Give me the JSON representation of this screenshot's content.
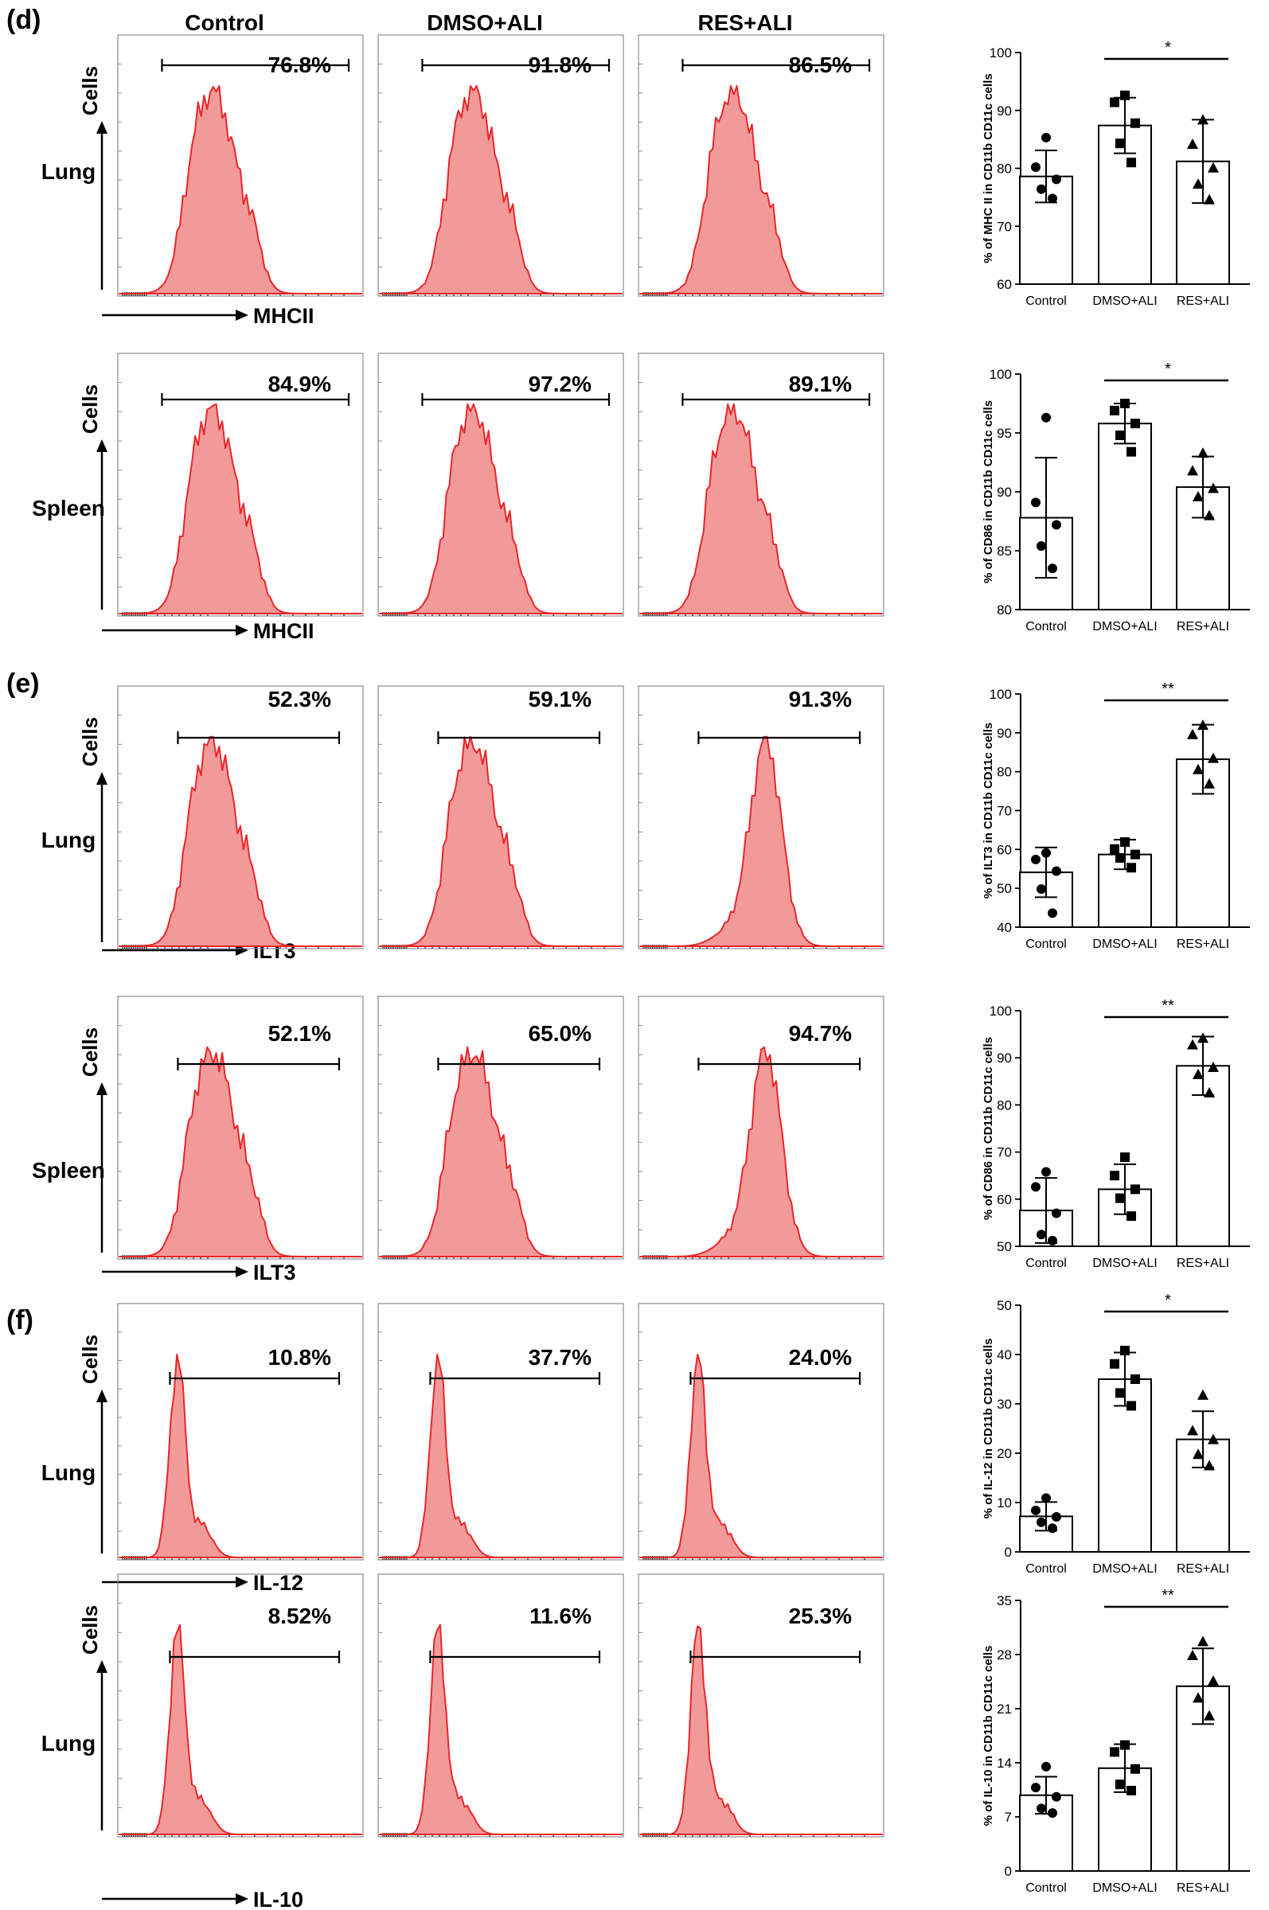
{
  "figure": {
    "panel_labels": [
      "(d)",
      "(e)",
      "(f)"
    ],
    "column_headers": [
      "Control",
      "DMSO+ALI",
      "RES+ALI"
    ],
    "y_axis_label": "Cells"
  },
  "flow_rows": [
    {
      "tissue": "Lung",
      "marker": "MHCII",
      "percentages": [
        "76.8%",
        "91.8%",
        "86.5%"
      ],
      "shapes": [
        "broad",
        "broad",
        "broad"
      ]
    },
    {
      "tissue": "Spleen",
      "marker": "MHCII",
      "percentages": [
        "84.9%",
        "97.2%",
        "89.1%"
      ],
      "shapes": [
        "broad",
        "broad",
        "broad"
      ]
    },
    {
      "tissue": "Lung",
      "marker": "ILT3",
      "percentages": [
        "52.3%",
        "59.1%",
        "91.3%"
      ],
      "shapes": [
        "broad",
        "broad",
        "tall"
      ]
    },
    {
      "tissue": "Spleen",
      "marker": "ILT3",
      "percentages": [
        "52.1%",
        "65.0%",
        "94.7%"
      ],
      "shapes": [
        "broad",
        "broad",
        "tall"
      ]
    },
    {
      "tissue": "Lung",
      "marker": "IL-12",
      "percentages": [
        "10.8%",
        "37.7%",
        "24.0%"
      ],
      "shapes": [
        "narrow",
        "narrow",
        "narrow"
      ]
    },
    {
      "tissue": "Lung",
      "marker": "IL-10",
      "percentages": [
        "8.52%",
        "11.6%",
        "25.3%"
      ],
      "shapes": [
        "narrow",
        "narrow",
        "narrow"
      ]
    }
  ],
  "colors": {
    "hist_fill": "#f29a9a",
    "hist_stroke": "#e8262a",
    "axis": "#000000"
  },
  "chart_data": [
    {
      "type": "bar",
      "categories": [
        "Control",
        "DMSO+ALI",
        "RES+ALI"
      ],
      "ylabel": "% of MHC II in CD11b CD11c cells",
      "ylim": [
        60,
        100
      ],
      "ticks": [
        60,
        70,
        80,
        90,
        100
      ],
      "values": [
        78.6,
        87.4,
        81.2
      ],
      "sd": [
        4.5,
        4.8,
        7.2
      ],
      "points": [
        [
          85.3,
          80.2,
          78.1,
          76.4,
          74.8
        ],
        [
          92.6,
          91.4,
          87.8,
          84.3,
          81.0
        ],
        [
          88.4,
          84.2,
          80.1,
          77.3,
          74.6
        ]
      ],
      "significance": "*",
      "sig_between": [
        1,
        2
      ]
    },
    {
      "type": "bar",
      "categories": [
        "Control",
        "DMSO+ALI",
        "RES+ALI"
      ],
      "ylabel": "% of CD86 in CD11b CD11c cells",
      "ylim": [
        80,
        100
      ],
      "ticks": [
        80,
        85,
        90,
        95,
        100
      ],
      "values": [
        87.8,
        95.8,
        90.4
      ],
      "sd": [
        5.1,
        1.7,
        2.6
      ],
      "points": [
        [
          96.3,
          89.1,
          87.2,
          85.4,
          83.5
        ],
        [
          97.5,
          96.9,
          95.8,
          94.8,
          93.4
        ],
        [
          93.3,
          91.8,
          90.3,
          89.6,
          88.0
        ]
      ],
      "significance": "*",
      "sig_between": [
        1,
        2
      ]
    },
    {
      "type": "bar",
      "categories": [
        "Control",
        "DMSO+ALI",
        "RES+ALI"
      ],
      "ylabel": "% of ILT3 in CD11b CD11c cells",
      "ylim": [
        40,
        100
      ],
      "ticks": [
        40,
        50,
        60,
        70,
        80,
        90,
        100
      ],
      "values": [
        54.1,
        58.7,
        83.2
      ],
      "sd": [
        6.4,
        3.8,
        8.9
      ],
      "points": [
        [
          59.1,
          57.4,
          54.4,
          49.8,
          43.6
        ],
        [
          61.9,
          60.1,
          58.7,
          57.8,
          55.3
        ],
        [
          92.0,
          89.6,
          83.5,
          80.6,
          76.9
        ]
      ],
      "significance": "**",
      "sig_between": [
        1,
        2
      ]
    },
    {
      "type": "bar",
      "categories": [
        "Control",
        "DMSO+ALI",
        "RES+ALI"
      ],
      "ylabel": "% of CD86 in CD11b CD11c cells",
      "ylim": [
        50,
        100
      ],
      "ticks": [
        50,
        60,
        70,
        80,
        90,
        100
      ],
      "values": [
        57.6,
        62.1,
        88.3
      ],
      "sd": [
        6.9,
        5.3,
        6.2
      ],
      "points": [
        [
          65.8,
          62.6,
          57.0,
          52.5,
          51.2
        ],
        [
          68.9,
          65.0,
          62.1,
          60.2,
          56.4
        ],
        [
          94.2,
          92.8,
          88.0,
          86.5,
          82.6
        ]
      ],
      "significance": "**",
      "sig_between": [
        1,
        2
      ]
    },
    {
      "type": "bar",
      "categories": [
        "Control",
        "DMSO+ALI",
        "RES+ALI"
      ],
      "ylabel": "% of IL-12 in CD11b CD11c cells",
      "ylim": [
        0,
        50
      ],
      "ticks": [
        0,
        10,
        20,
        30,
        40,
        50
      ],
      "values": [
        7.2,
        35.0,
        22.8
      ],
      "sd": [
        2.9,
        5.4,
        5.7
      ],
      "points": [
        [
          10.9,
          8.4,
          7.1,
          6.0,
          4.8
        ],
        [
          40.8,
          38.1,
          35.0,
          32.2,
          29.6
        ],
        [
          31.8,
          24.6,
          22.8,
          19.8,
          17.5
        ]
      ],
      "significance": "*",
      "sig_between": [
        1,
        2
      ]
    },
    {
      "type": "bar",
      "categories": [
        "Control",
        "DMSO+ALI",
        "RES+ALI"
      ],
      "ylabel": "% of IL-10 in CD11b CD11c cells",
      "ylim": [
        0,
        35
      ],
      "ticks": [
        0,
        7,
        14,
        21,
        28,
        35
      ],
      "values": [
        9.8,
        13.3,
        23.9
      ],
      "sd": [
        2.4,
        3.1,
        4.9
      ],
      "points": [
        [
          13.5,
          10.8,
          9.6,
          8.1,
          7.5
        ],
        [
          16.3,
          15.4,
          13.2,
          11.2,
          10.4
        ],
        [
          29.7,
          27.9,
          24.6,
          22.4,
          20.1
        ]
      ],
      "significance": "**",
      "sig_between": [
        1,
        2
      ]
    }
  ]
}
